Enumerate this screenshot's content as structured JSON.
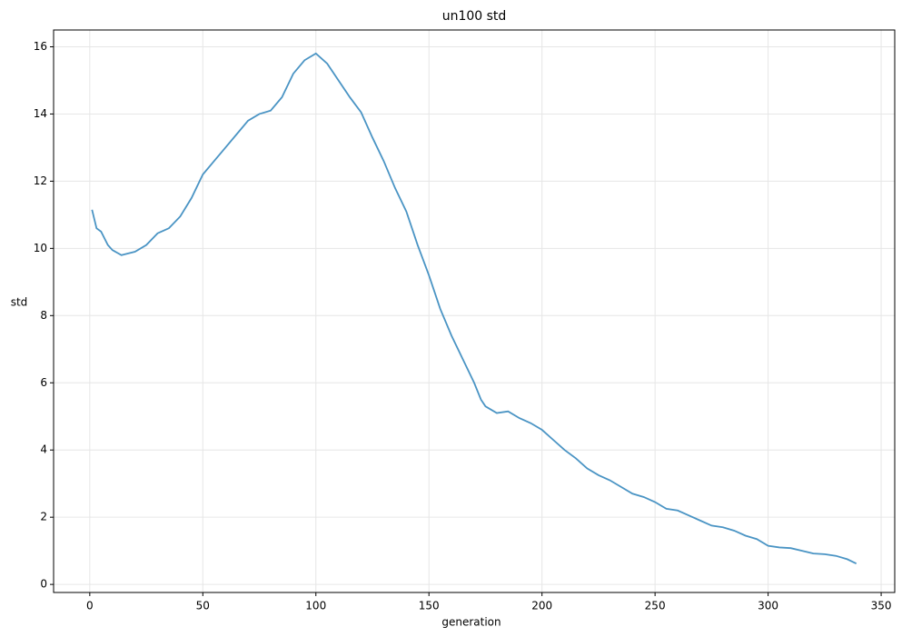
{
  "chart_data": {
    "type": "line",
    "title": "un100 std",
    "x_label": "generation",
    "y_label": "std",
    "x": [
      1,
      3,
      5,
      8,
      10,
      14,
      17,
      20,
      25,
      30,
      35,
      40,
      45,
      50,
      55,
      60,
      65,
      70,
      75,
      80,
      85,
      90,
      95,
      100,
      105,
      110,
      115,
      120,
      125,
      130,
      135,
      140,
      145,
      150,
      155,
      160,
      165,
      170,
      173,
      175,
      180,
      185,
      190,
      195,
      200,
      205,
      210,
      215,
      220,
      225,
      230,
      235,
      240,
      245,
      250,
      255,
      260,
      265,
      270,
      275,
      280,
      285,
      290,
      295,
      300,
      305,
      310,
      315,
      320,
      325,
      330,
      335,
      339
    ],
    "series": [
      {
        "name": "std",
        "color": "#4a94c4",
        "values": [
          11.15,
          10.6,
          10.5,
          10.1,
          9.95,
          9.8,
          9.85,
          9.9,
          10.1,
          10.45,
          10.6,
          10.95,
          11.5,
          12.2,
          12.6,
          13.0,
          13.4,
          13.8,
          14.0,
          14.1,
          14.5,
          15.2,
          15.6,
          15.8,
          15.5,
          15.0,
          14.5,
          14.05,
          13.3,
          12.6,
          11.8,
          11.1,
          10.1,
          9.2,
          8.2,
          7.4,
          6.7,
          6.0,
          5.5,
          5.3,
          5.1,
          5.15,
          4.95,
          4.8,
          4.6,
          4.3,
          4.0,
          3.75,
          3.45,
          3.25,
          3.1,
          2.9,
          2.7,
          2.6,
          2.45,
          2.25,
          2.2,
          2.05,
          1.9,
          1.75,
          1.7,
          1.6,
          1.45,
          1.35,
          1.15,
          1.1,
          1.08,
          1.0,
          0.92,
          0.9,
          0.85,
          0.75,
          0.62
        ]
      }
    ],
    "xlim": [
      -16,
      356
    ],
    "ylim": [
      -0.24,
      16.5
    ],
    "xticks": [
      0,
      50,
      100,
      150,
      200,
      250,
      300,
      350
    ],
    "yticks": [
      0,
      2,
      4,
      6,
      8,
      10,
      12,
      14,
      16
    ],
    "grid": true
  }
}
